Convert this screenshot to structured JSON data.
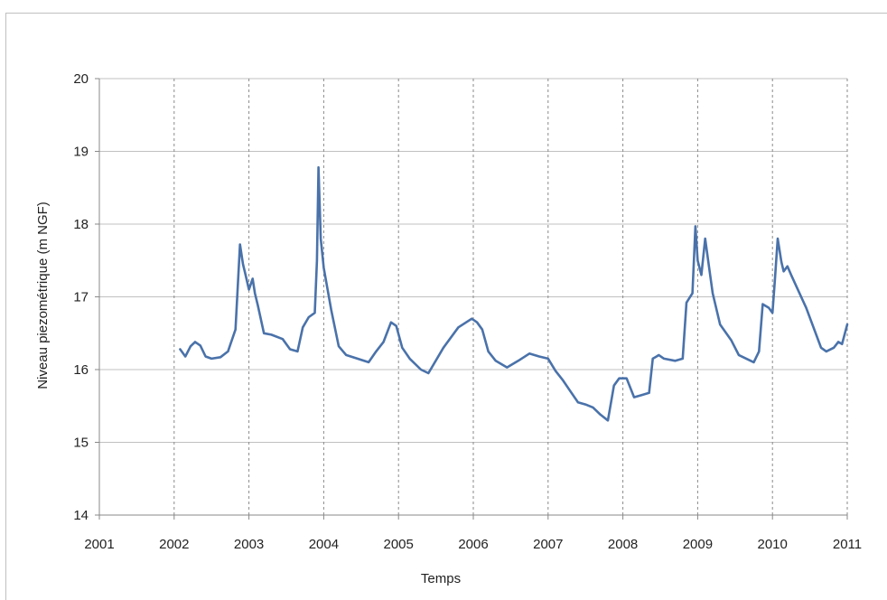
{
  "chart_data": {
    "type": "line",
    "title": "",
    "xlabel": "Temps",
    "ylabel": "Niveau piezométrique (m NGF)",
    "xlim": [
      2001,
      2011
    ],
    "ylim": [
      14,
      20
    ],
    "x_ticks": [
      2001,
      2002,
      2003,
      2004,
      2005,
      2006,
      2007,
      2008,
      2009,
      2010,
      2011
    ],
    "y_ticks": [
      14,
      15,
      16,
      17,
      18,
      19,
      20
    ],
    "x_tick_labels": [
      "2001",
      "2002",
      "2003",
      "2004",
      "2005",
      "2006",
      "2007",
      "2008",
      "2009",
      "2010",
      "2011"
    ],
    "y_tick_labels": [
      "14",
      "15",
      "16",
      "17",
      "18",
      "19",
      "20"
    ],
    "grid": {
      "horizontal": "solid",
      "vertical": "dashed"
    },
    "colors": {
      "line": "#4a72aa",
      "grid": "#c0c0c0",
      "axis": "#888888"
    },
    "series": [
      {
        "x": [
          2002.08,
          2002.15,
          2002.22,
          2002.28,
          2002.35,
          2002.42,
          2002.5,
          2002.62,
          2002.72,
          2002.82,
          2002.88,
          2002.92,
          2002.95,
          2003.0,
          2003.05,
          2003.08,
          2003.12,
          2003.2,
          2003.3,
          2003.45,
          2003.55,
          2003.65,
          2003.72,
          2003.8,
          2003.88,
          2003.91,
          2003.93,
          2003.96,
          2004.0,
          2004.1,
          2004.2,
          2004.3,
          2004.45,
          2004.6,
          2004.7,
          2004.8,
          2004.9,
          2004.97,
          2005.05,
          2005.15,
          2005.3,
          2005.4,
          2005.6,
          2005.8,
          2005.98,
          2006.05,
          2006.12,
          2006.2,
          2006.3,
          2006.45,
          2006.6,
          2006.75,
          2006.88,
          2007.0,
          2007.1,
          2007.2,
          2007.3,
          2007.4,
          2007.5,
          2007.6,
          2007.7,
          2007.8,
          2007.88,
          2007.95,
          2008.05,
          2008.15,
          2008.25,
          2008.35,
          2008.4,
          2008.45,
          2008.48,
          2008.55,
          2008.7,
          2008.8,
          2008.85,
          2008.93,
          2008.97,
          2009.0,
          2009.05,
          2009.1,
          2009.14,
          2009.2,
          2009.3,
          2009.45,
          2009.55,
          2009.65,
          2009.75,
          2009.82,
          2009.87,
          2009.95,
          2010.0,
          2010.03,
          2010.07,
          2010.12,
          2010.15,
          2010.2,
          2010.25,
          2010.45,
          2010.65,
          2010.72,
          2010.82,
          2010.88,
          2010.93,
          2011.0
        ],
        "y": [
          16.28,
          16.18,
          16.32,
          16.38,
          16.33,
          16.18,
          16.15,
          16.17,
          16.25,
          16.55,
          17.72,
          17.45,
          17.32,
          17.1,
          17.25,
          17.05,
          16.88,
          16.5,
          16.48,
          16.42,
          16.28,
          16.25,
          16.58,
          16.72,
          16.78,
          17.5,
          18.78,
          17.8,
          17.4,
          16.82,
          16.32,
          16.2,
          16.15,
          16.1,
          16.25,
          16.38,
          16.65,
          16.6,
          16.3,
          16.15,
          16.0,
          15.95,
          16.3,
          16.58,
          16.7,
          16.65,
          16.55,
          16.25,
          16.12,
          16.03,
          16.12,
          16.22,
          16.18,
          16.15,
          15.98,
          15.85,
          15.7,
          15.55,
          15.52,
          15.48,
          15.38,
          15.3,
          15.78,
          15.88,
          15.88,
          15.62,
          15.65,
          15.68,
          16.15,
          16.18,
          16.2,
          16.15,
          16.12,
          16.15,
          16.92,
          17.05,
          17.97,
          17.5,
          17.3,
          17.8,
          17.5,
          17.05,
          16.62,
          16.4,
          16.2,
          16.15,
          16.1,
          16.25,
          16.9,
          16.85,
          16.78,
          17.2,
          17.8,
          17.48,
          17.35,
          17.42,
          17.3,
          16.85,
          16.3,
          16.25,
          16.3,
          16.38,
          16.35,
          16.62
        ]
      }
    ]
  }
}
